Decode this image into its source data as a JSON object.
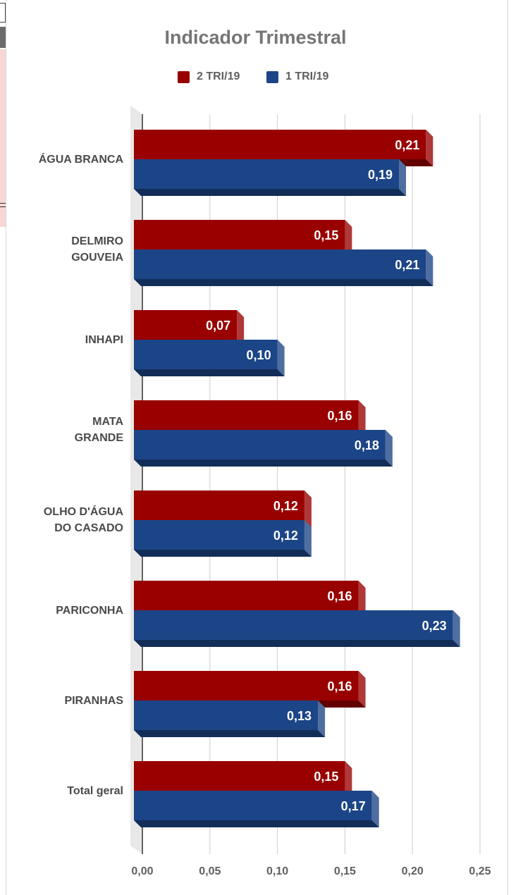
{
  "chart_data": {
    "type": "bar",
    "orientation": "horizontal",
    "title": "Indicador Trimestral",
    "categories": [
      "ÁGUA BRANCA",
      "DELMIRO GOUVEIA",
      "INHAPI",
      "MATA GRANDE",
      "OLHO D'ÁGUA DO CASADO",
      "PARICONHA",
      "PIRANHAS",
      "Total geral"
    ],
    "category_lines": [
      [
        "ÁGUA BRANCA"
      ],
      [
        "DELMIRO",
        "GOUVEIA"
      ],
      [
        "INHAPI"
      ],
      [
        "MATA",
        "GRANDE"
      ],
      [
        "OLHO D'ÁGUA",
        "DO CASADO"
      ],
      [
        "PARICONHA"
      ],
      [
        "PIRANHAS"
      ],
      [
        "Total geral"
      ]
    ],
    "series": [
      {
        "name": "2 TRI/19",
        "color": "#990000",
        "values": [
          0.21,
          0.15,
          0.07,
          0.16,
          0.12,
          0.16,
          0.16,
          0.15
        ],
        "labels": [
          "0,21",
          "0,15",
          "0,07",
          "0,16",
          "0,12",
          "0,16",
          "0,16",
          "0,15"
        ]
      },
      {
        "name": "1 TRI/19",
        "color": "#1c4587",
        "values": [
          0.19,
          0.21,
          0.1,
          0.18,
          0.12,
          0.23,
          0.13,
          0.17
        ],
        "labels": [
          "0,19",
          "0,21",
          "0,10",
          "0,18",
          "0,12",
          "0,23",
          "0,13",
          "0,17"
        ]
      }
    ],
    "xlim": [
      0,
      0.25
    ],
    "x_ticks": [
      0,
      0.05,
      0.1,
      0.15,
      0.2,
      0.25
    ],
    "x_tick_labels": [
      "0,00",
      "0,05",
      "0,10",
      "0,15",
      "0,20",
      "0,25"
    ],
    "grid": true,
    "legend_position": "top"
  }
}
